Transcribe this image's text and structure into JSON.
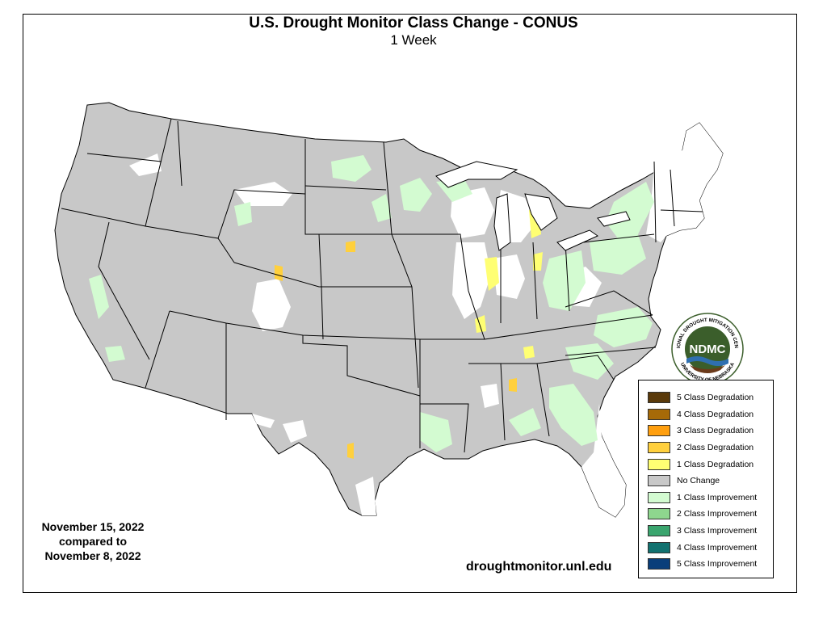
{
  "title": "U.S. Drought Monitor Class Change - CONUS",
  "subtitle": "1 Week",
  "dates": {
    "line1": "November 15, 2022",
    "line2": "compared to",
    "line3": "November 8, 2022"
  },
  "website": "droughtmonitor.unl.edu",
  "logo": {
    "text": "NDMC",
    "ring_top": "NATIONAL DROUGHT MITIGATION CENTER",
    "ring_bottom": "UNIVERSITY OF NEBRASKA"
  },
  "legend": [
    {
      "label": "5 Class Degradation",
      "color": "#5a3a0a"
    },
    {
      "label": "4 Class Degradation",
      "color": "#a66a08"
    },
    {
      "label": "3 Class Degradation",
      "color": "#ff9f0f"
    },
    {
      "label": "2 Class Degradation",
      "color": "#ffd03d"
    },
    {
      "label": "1 Class Degradation",
      "color": "#ffff73"
    },
    {
      "label": "No Change",
      "color": "#c8c8c8"
    },
    {
      "label": "1 Class Improvement",
      "color": "#d3fbd1"
    },
    {
      "label": "2 Class Improvement",
      "color": "#8ed68e"
    },
    {
      "label": "3 Class Improvement",
      "color": "#3aa56e"
    },
    {
      "label": "4 Class Improvement",
      "color": "#127270"
    },
    {
      "label": "5 Class Improvement",
      "color": "#0a3e7a"
    }
  ],
  "colors": {
    "no_change": "#c8c8c8",
    "improve_1": "#d3fbd1",
    "degrade_1": "#ffff73",
    "degrade_2": "#ffd03d",
    "logo_green": "#3b5e2b"
  }
}
